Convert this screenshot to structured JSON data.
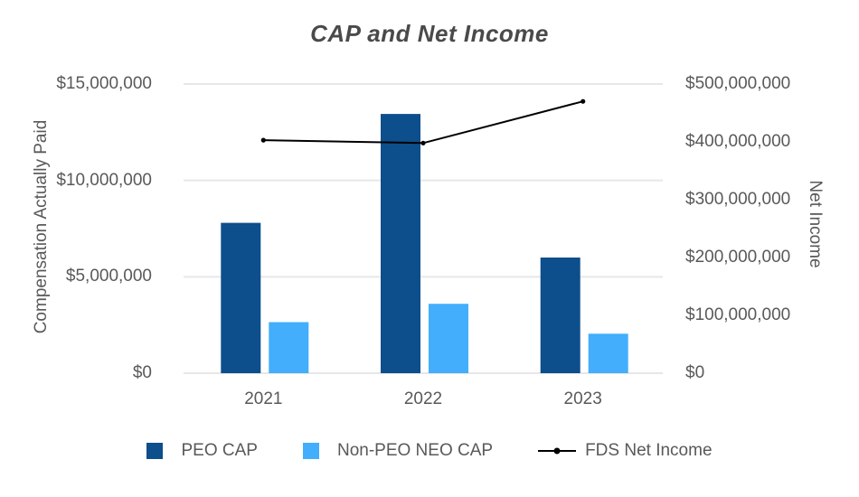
{
  "title": "CAP and Net Income",
  "colors": {
    "peo_cap": "#0D4E8C",
    "non_peo_neo_cap": "#42AEFC",
    "net_income_line": "#000000",
    "gridline": "#E7E7E7",
    "axis_text": "#595959",
    "title_text": "#4A4A4A",
    "background": "#FFFFFF"
  },
  "chart_data": {
    "type": "combo-bar-line",
    "title": "CAP and Net Income",
    "categories": [
      "2021",
      "2022",
      "2023"
    ],
    "series": [
      {
        "name": "PEO CAP",
        "type": "bar",
        "axis": "left",
        "color": "#0D4E8C",
        "values": [
          7800000,
          13450000,
          6000000
        ]
      },
      {
        "name": "Non-PEO NEO CAP",
        "type": "bar",
        "axis": "left",
        "color": "#42AEFC",
        "values": [
          2650000,
          3600000,
          2050000
        ]
      },
      {
        "name": "FDS Net Income",
        "type": "line",
        "axis": "right",
        "color": "#000000",
        "marker": "dot",
        "values": [
          403000000,
          398000000,
          470000000
        ]
      }
    ],
    "left_axis": {
      "label": "Compensation Actually Paid",
      "range": [
        0,
        15000000
      ],
      "tick_interval": 5000000,
      "tick_labels": [
        "$15,000,000",
        "$10,000,000",
        "$5,000,000",
        "$0"
      ]
    },
    "right_axis": {
      "label": "Net Income",
      "range": [
        0,
        500000000
      ],
      "tick_interval": 100000000,
      "tick_labels": [
        "$500,000,000",
        "$400,000,000",
        "$300,000,000",
        "$200,000,000",
        "$100,000,000",
        "$0"
      ]
    },
    "grid": "horizontal",
    "legend_position": "bottom",
    "legend": [
      "PEO CAP",
      "Non-PEO NEO CAP",
      "FDS Net Income"
    ]
  }
}
